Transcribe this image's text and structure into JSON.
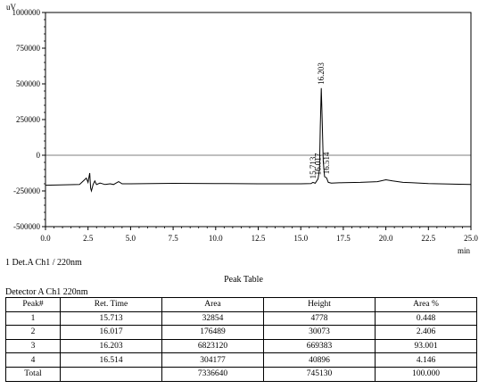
{
  "chart_data": {
    "type": "line",
    "y_unit": "uV",
    "x_unit": "min",
    "xlim": [
      0.0,
      25.0
    ],
    "ylim": [
      -500000,
      1000000
    ],
    "x_ticks": [
      "0.0",
      "2.5",
      "5.0",
      "7.5",
      "10.0",
      "12.5",
      "15.0",
      "17.5",
      "20.0",
      "22.5",
      "25.0"
    ],
    "x_tick_values": [
      0,
      2.5,
      5,
      7.5,
      10,
      12.5,
      15,
      17.5,
      20,
      22.5,
      25
    ],
    "y_ticks": [
      "-500000",
      "-250000",
      "0",
      "250000",
      "500000",
      "750000",
      "1000000"
    ],
    "y_tick_values": [
      -500000,
      -250000,
      0,
      250000,
      500000,
      750000,
      1000000
    ],
    "baseline": -210000,
    "series": [
      {
        "x": [
          0.0,
          2.0,
          2.4,
          2.5,
          2.6,
          2.65,
          2.7,
          2.8,
          2.9,
          3.0,
          3.2,
          3.5,
          3.8,
          4.0,
          4.3,
          4.5,
          5.0,
          7.5,
          10.0,
          12.5,
          15.0,
          15.6,
          15.713,
          15.85,
          16.017,
          16.1,
          16.15,
          16.203,
          16.26,
          16.32,
          16.4,
          16.514,
          16.62,
          16.8,
          17.5,
          18.5,
          19.5,
          20.0,
          20.4,
          21.0,
          21.5,
          22.5,
          25.0
        ],
        "y": [
          -210000,
          -205000,
          -160000,
          -190000,
          -125000,
          -230000,
          -250000,
          -205000,
          -180000,
          -205000,
          -195000,
          -205000,
          -200000,
          -205000,
          -185000,
          -200000,
          -200000,
          -197000,
          -198000,
          -200000,
          -200000,
          -199000,
          -190000,
          -196000,
          -165000,
          -100000,
          200000,
          470000,
          250000,
          -40000,
          -150000,
          -158000,
          -190000,
          -195000,
          -192000,
          -190000,
          -185000,
          -172000,
          -180000,
          -190000,
          -192000,
          -198000,
          -205000
        ]
      }
    ],
    "peak_labels": [
      {
        "text": "15.713",
        "x": 15.713,
        "y": -190000
      },
      {
        "text": "16.017",
        "x": 16.017,
        "y": -165000
      },
      {
        "text": "16.203",
        "x": 16.203,
        "y": 470000
      },
      {
        "text": "16.514",
        "x": 16.514,
        "y": -158000
      }
    ]
  },
  "caption": "1 Det.A Ch1 / 220nm",
  "peak_table": {
    "title": "Peak Table",
    "detector_label": "Detector A Ch1 220nm",
    "headers": [
      "Peak#",
      "Ret. Time",
      "Area",
      "Height",
      "Area %"
    ],
    "rows": [
      [
        "1",
        "15.713",
        "32854",
        "4778",
        "0.448"
      ],
      [
        "2",
        "16.017",
        "176489",
        "30073",
        "2.406"
      ],
      [
        "3",
        "16.203",
        "6823120",
        "669383",
        "93.001"
      ],
      [
        "4",
        "16.514",
        "304177",
        "40896",
        "4.146"
      ]
    ],
    "total": [
      "Total",
      "",
      "7336640",
      "745130",
      "100.000"
    ]
  }
}
